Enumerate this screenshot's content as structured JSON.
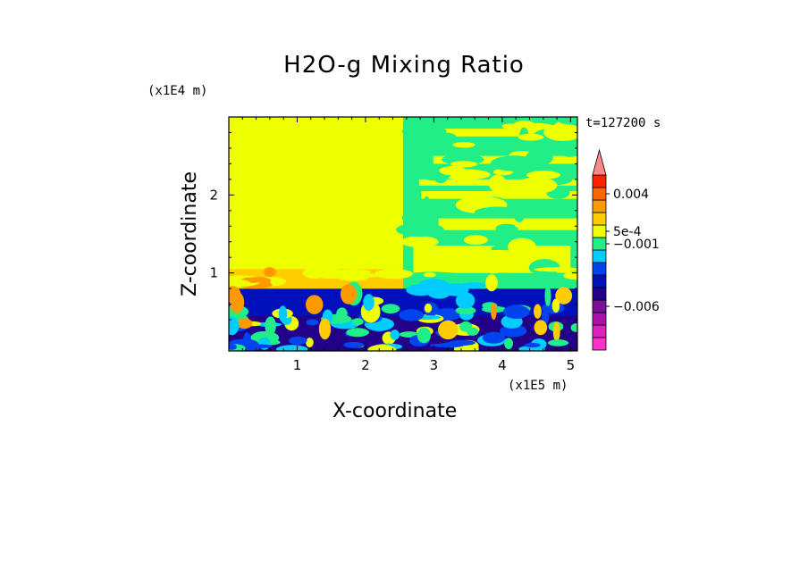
{
  "chart_data": {
    "type": "heatmap",
    "title": "H2O-g Mixing Ratio",
    "xlabel": "X-coordinate",
    "ylabel": "Z-coordinate",
    "x_scale_note": "(x1E5 m)",
    "y_scale_note": "(x1E4 m)",
    "time_label": "t=127200 s",
    "xlim": [
      0,
      5.1
    ],
    "ylim": [
      0,
      3.0
    ],
    "x_ticks": [
      1,
      2,
      3,
      4,
      5
    ],
    "y_ticks": [
      1,
      2
    ],
    "colorbar": {
      "levels": [
        {
          "color": "#ff33cc"
        },
        {
          "color": "#dd22bb"
        },
        {
          "color": "#aa11aa"
        },
        {
          "color": "#771199"
        },
        {
          "color": "#220088"
        },
        {
          "color": "#0011bb"
        },
        {
          "color": "#0044ee"
        },
        {
          "color": "#00ccff"
        },
        {
          "color": "#22ee88"
        },
        {
          "color": "#eeff00"
        },
        {
          "color": "#ffcc00"
        },
        {
          "color": "#ff9900"
        },
        {
          "color": "#ff6600"
        },
        {
          "color": "#ff2200"
        },
        {
          "color": "#ff8888"
        }
      ],
      "tick_labels": [
        {
          "text": "0.004",
          "level": 12.5
        },
        {
          "text": "5e-4",
          "level": 9.5
        },
        {
          "text": "−0.001",
          "level": 8.5
        },
        {
          "text": "−0.006",
          "level": 3.5
        }
      ]
    },
    "regions": [
      {
        "name": "moist-boundary-layer",
        "x": [
          0,
          5.1
        ],
        "z": [
          0,
          0.8
        ],
        "value_level": 5
      },
      {
        "name": "upper-left-uniform",
        "x": [
          0,
          2.55
        ],
        "z": [
          0.8,
          3.0
        ],
        "value_level": 9
      },
      {
        "name": "upper-right-turbulent",
        "x": [
          2.55,
          5.1
        ],
        "z": [
          0.8,
          3.0
        ],
        "value_level": 8
      }
    ]
  }
}
